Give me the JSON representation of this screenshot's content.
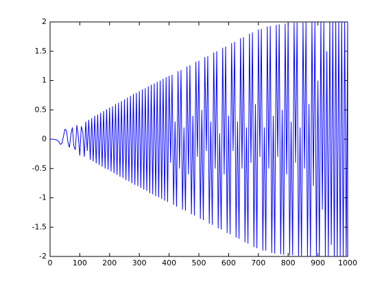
{
  "chart_data": {
    "type": "line",
    "x": [
      0,
      5,
      10,
      15,
      20,
      25,
      30,
      35,
      40,
      45,
      50,
      55,
      60,
      65,
      70,
      75,
      80,
      85,
      90,
      95,
      100,
      105,
      110,
      115,
      120,
      125,
      130,
      135,
      140,
      145,
      150,
      155,
      160,
      165,
      170,
      175,
      180,
      185,
      190,
      195,
      200,
      205,
      210,
      215,
      220,
      225,
      230,
      235,
      240,
      245,
      250,
      255,
      260,
      265,
      270,
      275,
      280,
      285,
      290,
      295,
      300,
      305,
      310,
      315,
      320,
      325,
      330,
      335,
      340,
      345,
      350,
      355,
      360,
      365,
      370,
      375,
      380,
      385,
      390,
      395,
      400,
      405,
      410,
      415,
      420,
      425,
      430,
      435,
      440,
      445,
      450,
      455,
      460,
      465,
      470,
      475,
      480,
      485,
      490,
      495,
      500,
      505,
      510,
      515,
      520,
      525,
      530,
      535,
      540,
      545,
      550,
      555,
      560,
      565,
      570,
      575,
      580,
      585,
      590,
      595,
      600,
      605,
      610,
      615,
      620,
      625,
      630,
      635,
      640,
      645,
      650,
      655,
      660,
      665,
      670,
      675,
      680,
      685,
      690,
      695,
      700,
      705,
      710,
      715,
      720,
      725,
      730,
      735,
      740,
      745,
      750,
      755,
      760,
      765,
      770,
      775,
      780,
      785,
      790,
      795,
      800,
      805,
      810,
      815,
      820,
      825,
      830,
      835,
      840,
      845,
      850,
      855,
      860,
      865,
      870,
      875,
      880,
      885,
      890,
      895,
      900,
      905,
      910,
      915,
      920,
      925,
      930,
      935,
      940,
      945,
      950,
      955,
      960,
      965,
      970,
      975,
      980,
      985,
      990,
      995,
      1000
    ],
    "series": [
      {
        "color": "#0000ff",
        "values": [
          0,
          0,
          0,
          -0.005,
          -0.01,
          -0.02,
          -0.05,
          -0.09,
          -0.07,
          0.05,
          0.17,
          0.15,
          -0.05,
          -0.14,
          0.08,
          0.2,
          -0.12,
          -0.18,
          0.24,
          0.05,
          -0.28,
          0.22,
          0.12,
          -0.3,
          0.3,
          -0.2,
          0.33,
          -0.35,
          0.36,
          -0.38,
          0.4,
          -0.41,
          0.42,
          -0.44,
          0.45,
          -0.47,
          0.48,
          -0.5,
          0.51,
          -0.52,
          0.54,
          -0.55,
          0.56,
          -0.58,
          0.6,
          -0.61,
          0.62,
          -0.64,
          0.65,
          -0.66,
          0.68,
          -0.7,
          0.71,
          -0.72,
          0.74,
          -0.75,
          0.77,
          -0.78,
          0.79,
          -0.8,
          0.82,
          -0.83,
          0.85,
          -0.86,
          0.87,
          -0.88,
          0.9,
          -0.92,
          0.93,
          -0.94,
          0.95,
          -0.97,
          0.98,
          -0.99,
          1.0,
          -1.02,
          1.03,
          -1.05,
          1.06,
          -1.07,
          1.08,
          -0.4,
          1.1,
          -1.12,
          0.3,
          -1.15,
          1.16,
          -0.5,
          1.18,
          -1.2,
          0.2,
          -1.22,
          1.24,
          -0.6,
          1.26,
          -1.28,
          0.4,
          -1.3,
          1.32,
          -0.3,
          1.34,
          -1.36,
          0.5,
          -1.38,
          1.4,
          -0.2,
          1.42,
          -1.44,
          0.3,
          -1.46,
          1.48,
          -0.5,
          1.5,
          -1.52,
          0.1,
          -1.54,
          1.56,
          -0.6,
          1.58,
          -1.6,
          0.4,
          -1.62,
          1.64,
          -0.2,
          1.66,
          -1.68,
          0.3,
          -1.7,
          1.72,
          -0.5,
          1.74,
          -1.76,
          0.2,
          -1.78,
          1.8,
          -0.4,
          1.82,
          -1.84,
          0.6,
          -1.86,
          1.87,
          -0.3,
          1.88,
          -1.9,
          0.2,
          -1.9,
          1.92,
          -0.5,
          1.93,
          -1.94,
          0.4,
          -1.95,
          1.95,
          -0.3,
          1.96,
          -1.96,
          0.5,
          -1.97,
          1.97,
          -0.6,
          1.98,
          -1.98,
          0.3,
          -1.98,
          1.99,
          -0.4,
          1.99,
          -1.99,
          0.2,
          -1.99,
          1.99,
          -0.5,
          2.0,
          -2.0,
          0.6,
          -2.0,
          2.0,
          -0.8,
          2.0,
          -2.0,
          1.0,
          -2.0,
          2.0,
          -1.2,
          2.0,
          -2.0,
          1.5,
          -2.0,
          2.0,
          -1.8,
          2.0,
          -2.0,
          2.0,
          -2.0,
          2.0,
          -2.0,
          2.0,
          -2.0,
          2.0,
          -2.0,
          2.0
        ]
      }
    ],
    "xlim": [
      0,
      1000
    ],
    "xticks": [
      0,
      100,
      200,
      300,
      400,
      500,
      600,
      700,
      800,
      900,
      1000
    ],
    "ylim": [
      -2,
      2
    ],
    "yticks": [
      -2,
      -1.5,
      -1,
      -0.5,
      0,
      0.5,
      1,
      1.5,
      2
    ],
    "grid": false
  }
}
